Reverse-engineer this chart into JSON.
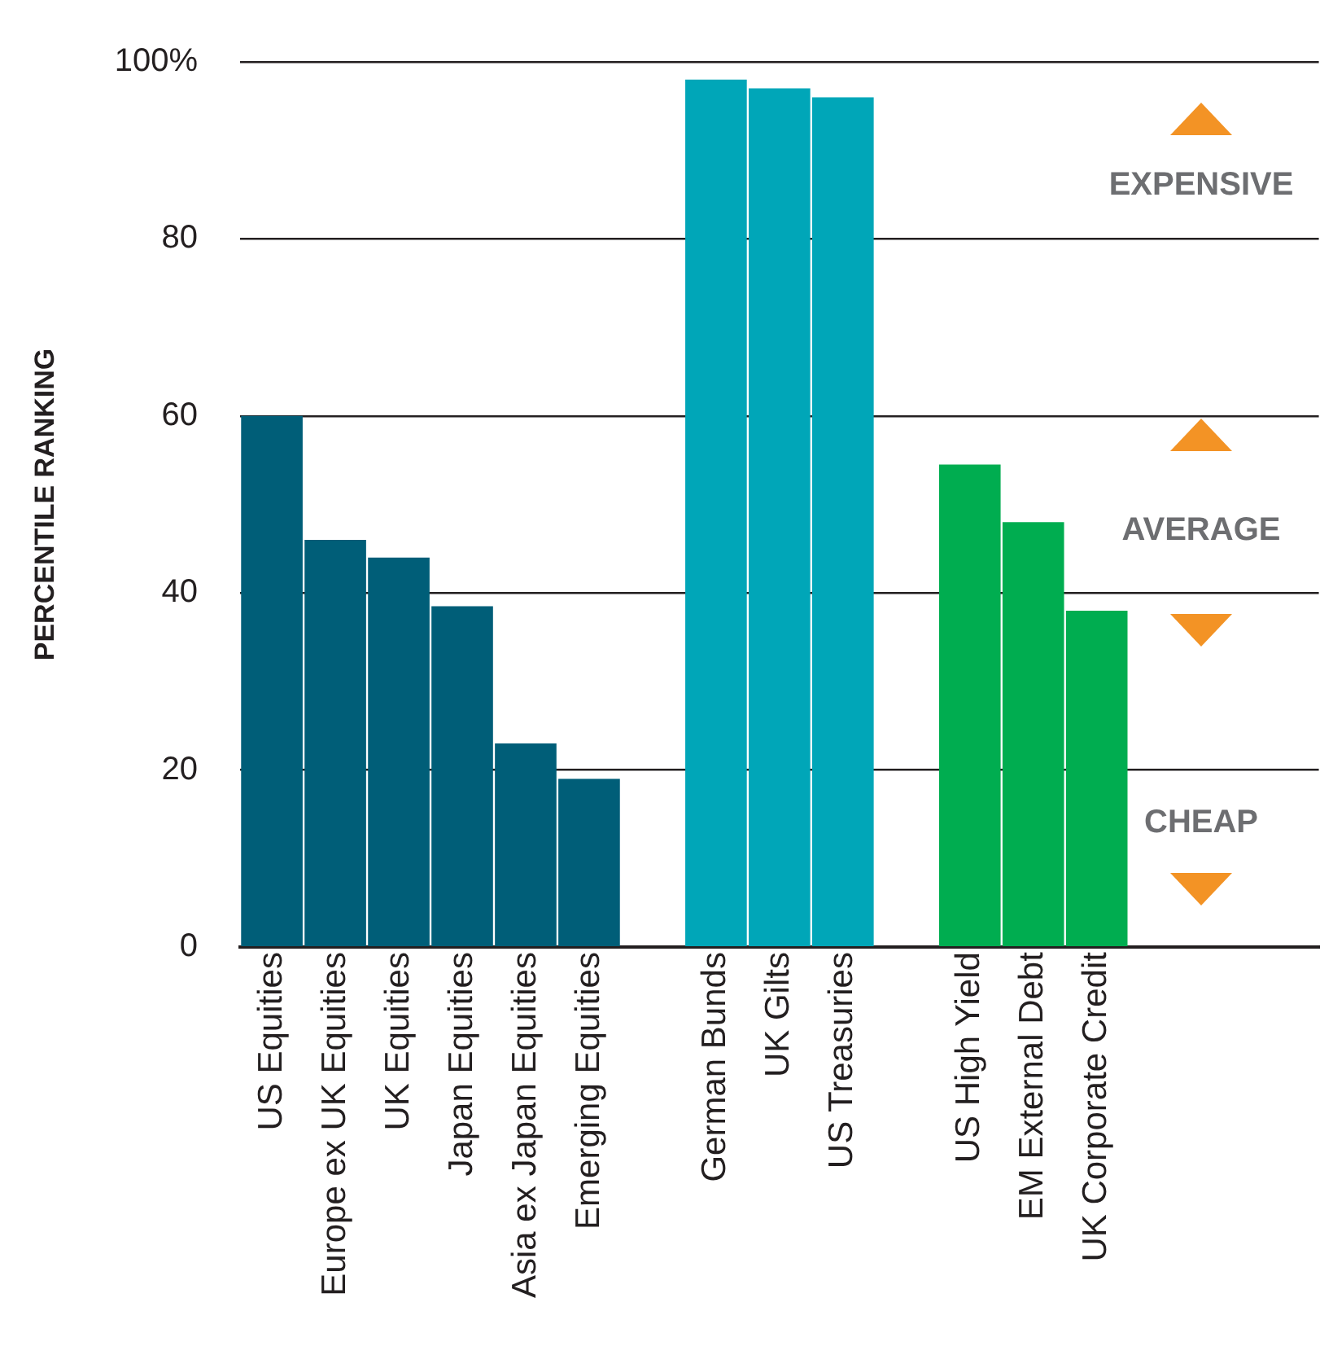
{
  "chart_data": {
    "type": "bar",
    "categories": [
      "US Equities",
      "Europe ex UK Equities",
      "UK Equities",
      "Japan Equities",
      "Asia ex Japan Equities",
      "Emerging Equities",
      null,
      "German Bunds",
      "UK Gilts",
      "US Treasuries",
      null,
      "US High Yield",
      "EM External Debt",
      "UK Corporate Credit",
      null,
      null,
      null
    ],
    "values": [
      60,
      46,
      44,
      38.5,
      23,
      19,
      null,
      98,
      97,
      96,
      null,
      54.5,
      48,
      38,
      null,
      null,
      null
    ],
    "colors": [
      "#005e78",
      "#005e78",
      "#005e78",
      "#005e78",
      "#005e78",
      "#005e78",
      null,
      "#00a6b8",
      "#00a6b8",
      "#00a6b8",
      null,
      "#00ad50",
      "#00ad50",
      "#00ad50",
      null,
      null,
      null
    ],
    "ylabel": "PERCENTILE RANKING",
    "ylim": [
      0,
      100
    ],
    "yticks": [
      0,
      20,
      40,
      60,
      80,
      {
        "value": 100,
        "label": "100%"
      }
    ],
    "grid": "y",
    "legend": false,
    "annotations": [
      "EXPENSIVE",
      "AVERAGE",
      "CHEAP"
    ]
  }
}
